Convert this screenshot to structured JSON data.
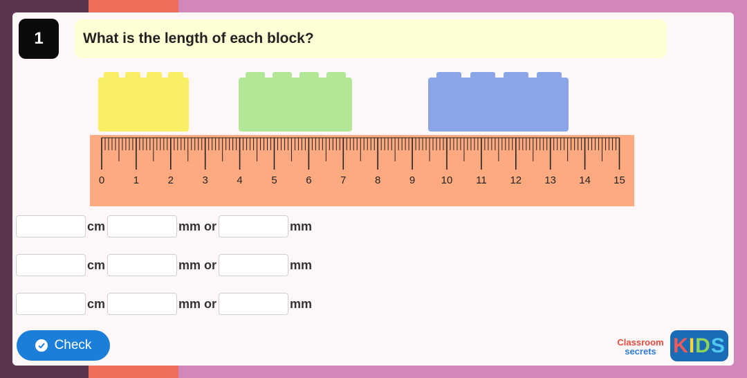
{
  "question": {
    "number": "1",
    "text": "What is the length of each block?"
  },
  "blocks": [
    {
      "name": "yellow-block",
      "color": "#f7ee63"
    },
    {
      "name": "green-block",
      "color": "#b1e796"
    },
    {
      "name": "blue-block",
      "color": "#8ba6e8"
    }
  ],
  "ruler": {
    "color": "#fdaa80",
    "labels": [
      "0",
      "1",
      "2",
      "3",
      "4",
      "5",
      "6",
      "7",
      "8",
      "9",
      "10",
      "11",
      "12",
      "13",
      "14",
      "15"
    ]
  },
  "answers": [
    {
      "unit1": "cm",
      "unit2": "mm or",
      "unit3": "mm"
    },
    {
      "unit1": "cm",
      "unit2": "mm or",
      "unit3": "mm"
    },
    {
      "unit1": "cm",
      "unit2": "mm or",
      "unit3": "mm"
    }
  ],
  "check_button": {
    "label": "Check",
    "color": "#1b7ed8"
  },
  "logos": {
    "classroom": "Classroom",
    "secrets": "secrets",
    "kids": "KIDS"
  }
}
